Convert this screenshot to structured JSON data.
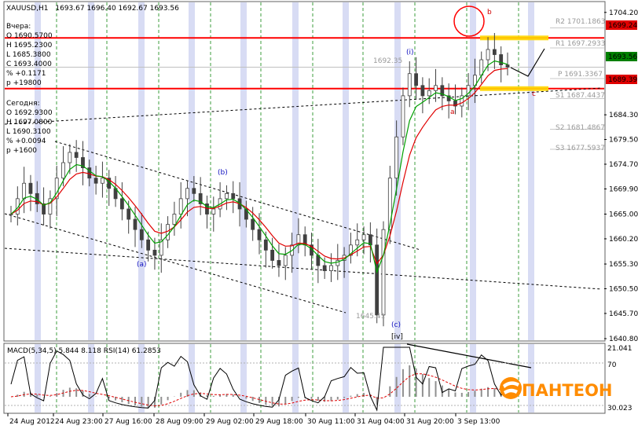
{
  "header": {
    "symbol": "XAUUSD,H1",
    "ohlc": "1693.67 1696.40 1692.67 1693.56"
  },
  "yesterday": {
    "title": "Вчера:",
    "open": "O 1690.5700",
    "high": "H 1695.2300",
    "low": "L 1685.3800",
    "close": "C 1693.4000",
    "pct": "% +0.1171",
    "pts": "p +19800"
  },
  "today": {
    "title": "Сегодня:",
    "open": "O 1692.9300",
    "high": "H 1697.0800",
    "low": "L 1690.3100",
    "pct": "% +0.0094",
    "pts": "p +1600"
  },
  "price_axis": {
    "ticks": [
      "1704.20",
      "1684.30",
      "1679.50",
      "1674.70",
      "1669.90",
      "1665.00",
      "1660.20",
      "1655.30",
      "1650.50",
      "1645.70",
      "1640.80"
    ],
    "badge_top": "1699.24",
    "badge_current": "1693.56",
    "badge_bottom": "1689.39"
  },
  "levels": {
    "r2": "R2 1701.1863",
    "r1": "R1 1697.2933",
    "p": "P 1691.3367",
    "s1": "S1 1687.4437",
    "s2": "S2 1681.4867",
    "s3": "S3 1677.5937",
    "hi_label": "1692.35",
    "lo_label": "1645.41"
  },
  "waves": {
    "a_paren": "(a)",
    "b_paren": "(b)",
    "c_paren": "(c)",
    "i_paren": "(i)",
    "iv": "[iv]",
    "a": "a",
    "b": "b",
    "c": "c"
  },
  "time_axis": {
    "labels": [
      "24 Aug 2012",
      "24 Aug 23:00",
      "27 Aug 16:00",
      "28 Aug 09:00",
      "29 Aug 02:00",
      "29 Aug 18:00",
      "30 Aug 11:00",
      "31 Aug 04:00",
      "31 Aug 20:00",
      "3 Sep 13:00"
    ]
  },
  "indicator": {
    "label": "MACD(5,34,5) 5.844 8.118  RSI(14) 61.2853",
    "axis_top": "21.041",
    "axis_70": "70",
    "axis_30": "30.023"
  },
  "logo": {
    "text": "ПАНТЕОН"
  },
  "colors": {
    "candle": "#404040",
    "ma_fast": "#00a000",
    "ma_slow": "#e00000",
    "support_resistance": "#ff0000",
    "zone": "#ffd700",
    "grid": "#3c9c3c",
    "session": "#d8dcf4",
    "logo": "#ff8c00"
  },
  "chart_data": {
    "type": "candlestick",
    "title": "XAUUSD,H1",
    "ylim": [
      1640.8,
      1706.0
    ],
    "y_ticks": [
      1640.8,
      1645.7,
      1650.5,
      1655.3,
      1660.2,
      1665.0,
      1669.9,
      1674.7,
      1679.5,
      1684.3,
      1704.2
    ],
    "horizontal_levels": [
      {
        "name": "R2",
        "value": 1701.1863
      },
      {
        "name": "R1",
        "value": 1697.2933
      },
      {
        "name": "P",
        "value": 1691.3367
      },
      {
        "name": "S1",
        "value": 1687.4437
      },
      {
        "name": "S2",
        "value": 1681.4867
      },
      {
        "name": "S3",
        "value": 1677.5937
      },
      {
        "name": "resistance",
        "value": 1699.24
      },
      {
        "name": "support",
        "value": 1689.39
      },
      {
        "name": "current",
        "value": 1693.56
      }
    ],
    "close_series": [
      1665,
      1668,
      1671,
      1669,
      1667,
      1665,
      1668,
      1672,
      1675,
      1677,
      1676,
      1674,
      1672,
      1671,
      1672,
      1670,
      1668,
      1666,
      1664,
      1662,
      1660,
      1658,
      1657,
      1660,
      1663,
      1665,
      1668,
      1670,
      1669,
      1667,
      1665,
      1666,
      1668,
      1669,
      1668,
      1666,
      1664,
      1662,
      1660,
      1658,
      1656,
      1655,
      1657,
      1659,
      1661,
      1659,
      1657,
      1655,
      1654,
      1655,
      1656,
      1657,
      1659,
      1660,
      1661,
      1659,
      1645.4,
      1662,
      1672,
      1680,
      1688,
      1692.3,
      1690,
      1688,
      1689,
      1690,
      1688,
      1687,
      1686,
      1688,
      1690,
      1692,
      1695,
      1697,
      1696,
      1694,
      1693.56
    ],
    "macd_label": "MACD(5,34,5) 5.844 8.118",
    "rsi_label": "RSI(14) 61.2853"
  }
}
